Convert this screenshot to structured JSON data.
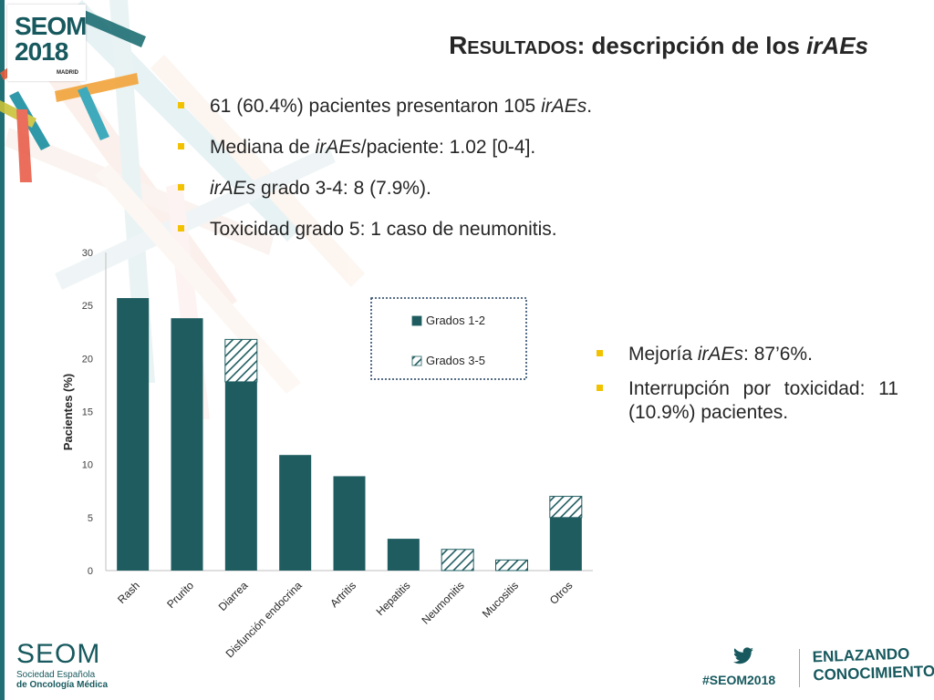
{
  "header": {
    "logo_line1": "SEOM",
    "logo_line2": "2018",
    "logo_city": "MADRID",
    "title_prefix_big": "R",
    "title_prefix_small": "ESULTADOS",
    "title_rest": ": descripción de los ",
    "title_italic": "irAEs"
  },
  "bullets_top": [
    {
      "pre": "61 (60.4%) pacientes presentaron 105 ",
      "em": "irAEs",
      "post": "."
    },
    {
      "pre": "Mediana de ",
      "em": "irAEs",
      "post": "/paciente: 1.02 [0-4]."
    },
    {
      "pre": "",
      "em": "irAEs",
      "post": " grado 3-4: 8 (7.9%)."
    },
    {
      "pre": "Toxicidad grado 5: 1 caso de neumonitis.",
      "em": "",
      "post": ""
    }
  ],
  "bullets_right": [
    {
      "pre": "Mejoría ",
      "em": "irAEs",
      "post": ": 87’6%."
    },
    {
      "pre": "Interrupción por toxicidad: 11 (10.9%) pacientes.",
      "em": "",
      "post": ""
    }
  ],
  "chart_data": {
    "type": "bar",
    "stacked": true,
    "categories": [
      "Rash",
      "Prurito",
      "Diarrea",
      "Disfunción endocrina",
      "Artritis",
      "Hepatitis",
      "Neumonitis",
      "Mucositis",
      "Otros"
    ],
    "series": [
      {
        "name": "Grados 1-2",
        "values": [
          25.7,
          23.8,
          17.8,
          10.9,
          8.9,
          3.0,
          0,
          0,
          5.0
        ],
        "color": "#1f5c60",
        "pattern": "solid"
      },
      {
        "name": "Grados 3-5",
        "values": [
          0,
          0,
          4.0,
          0,
          0,
          0,
          2.0,
          1.0,
          2.0
        ],
        "color": "#1f5c60",
        "pattern": "hatched"
      }
    ],
    "ylabel": "Pacientes (%)",
    "xlabel": "",
    "ylim": [
      0,
      30
    ],
    "yticks": [
      0,
      5,
      10,
      15,
      20,
      25,
      30
    ],
    "legend_position": "top-right",
    "grid": false
  },
  "footer": {
    "seom_word": "SEOM",
    "seom_sub1": "Sociedad Española",
    "seom_sub2": "de Oncología Médica",
    "hashtag": "#SEOM2018",
    "tagline1": "ENLAZANDO",
    "tagline2": "CONOCIMIENTO"
  },
  "colors": {
    "accent_teal": "#1f5c60",
    "bullet_yellow": "#f2c200"
  }
}
